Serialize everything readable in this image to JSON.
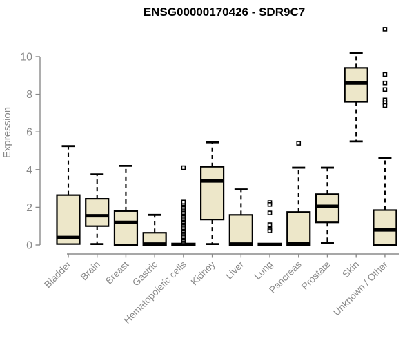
{
  "page": {
    "background": "#ffffff"
  },
  "header": {
    "title": "ENSG00000170426 - SDR9C7"
  },
  "chart_data": {
    "type": "boxplot",
    "title": "ENSG00000170426 - SDR9C7",
    "xlabel": "",
    "ylabel": "Expression",
    "ylim": [
      0,
      11.6
    ],
    "yticks": [
      0,
      2,
      4,
      6,
      8,
      10
    ],
    "grid": false,
    "legend": "none",
    "box_fill": "#EDE7C9",
    "box_stroke": "#000000",
    "axis_color": "#8a8a8a",
    "categories": [
      "Bladder",
      "Brain",
      "Breast",
      "Gastric",
      "Hematopoietic cells",
      "Kidney",
      "Liver",
      "Lung",
      "Pancreas",
      "Prostate",
      "Skin",
      "Unknown / Other"
    ],
    "series": [
      {
        "category": "Bladder",
        "whisker_low": 0.05,
        "q1": 0.05,
        "median": 0.4,
        "q3": 2.65,
        "whisker_high": 5.25,
        "outliers": []
      },
      {
        "category": "Brain",
        "whisker_low": 0.05,
        "q1": 1.0,
        "median": 1.55,
        "q3": 2.45,
        "whisker_high": 3.75,
        "outliers": []
      },
      {
        "category": "Breast",
        "whisker_low": 0.0,
        "q1": 0.0,
        "median": 1.2,
        "q3": 1.8,
        "whisker_high": 4.2,
        "outliers": []
      },
      {
        "category": "Gastric",
        "whisker_low": 0.0,
        "q1": 0.0,
        "median": 0.05,
        "q3": 0.65,
        "whisker_high": 1.6,
        "outliers": []
      },
      {
        "category": "Hematopoietic cells",
        "whisker_low": 0.0,
        "q1": 0.0,
        "median": 0.02,
        "q3": 0.08,
        "whisker_high": 0.1,
        "outliers": [
          0.12,
          0.2,
          0.28,
          0.36,
          0.44,
          0.52,
          0.6,
          0.68,
          0.76,
          0.84,
          0.92,
          1.0,
          1.08,
          1.16,
          1.24,
          1.32,
          1.4,
          1.48,
          1.56,
          1.64,
          1.72,
          1.8,
          1.88,
          1.96,
          2.04,
          2.12,
          2.2,
          2.28,
          4.1
        ]
      },
      {
        "category": "Kidney",
        "whisker_low": 0.05,
        "q1": 1.35,
        "median": 3.4,
        "q3": 4.15,
        "whisker_high": 5.45,
        "outliers": []
      },
      {
        "category": "Liver",
        "whisker_low": 0.0,
        "q1": 0.0,
        "median": 0.05,
        "q3": 1.6,
        "whisker_high": 2.95,
        "outliers": []
      },
      {
        "category": "Lung",
        "whisker_low": 0.0,
        "q1": 0.0,
        "median": 0.02,
        "q3": 0.08,
        "whisker_high": 0.1,
        "outliers": [
          2.25,
          2.15,
          1.7,
          1.08,
          0.85,
          0.75
        ]
      },
      {
        "category": "Pancreas",
        "whisker_low": 0.0,
        "q1": 0.0,
        "median": 0.08,
        "q3": 1.75,
        "whisker_high": 4.1,
        "outliers": [
          5.4
        ]
      },
      {
        "category": "Prostate",
        "whisker_low": 0.1,
        "q1": 1.2,
        "median": 2.05,
        "q3": 2.7,
        "whisker_high": 4.1,
        "outliers": []
      },
      {
        "category": "Skin",
        "whisker_low": 5.5,
        "q1": 7.6,
        "median": 8.6,
        "q3": 9.4,
        "whisker_high": 10.2,
        "outliers": []
      },
      {
        "category": "Unknown / Other",
        "whisker_low": 0.0,
        "q1": 0.0,
        "median": 0.8,
        "q3": 1.85,
        "whisker_high": 4.6,
        "outliers": [
          11.45,
          9.05,
          8.6,
          8.25,
          7.7,
          7.55,
          7.4
        ]
      }
    ]
  }
}
